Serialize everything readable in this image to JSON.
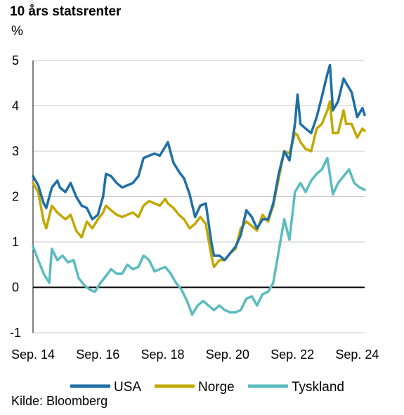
{
  "chart_data": {
    "type": "line",
    "title": "10 års statsrenter",
    "ylabel": "%",
    "ylim": [
      -1,
      5
    ],
    "yticks": [
      -1,
      0,
      1,
      2,
      3,
      4,
      5
    ],
    "xlim": [
      2014.67,
      2024.9
    ],
    "xticks": [
      {
        "label": "Sep. 14",
        "value": 2014.67
      },
      {
        "label": "Sep. 16",
        "value": 2016.67
      },
      {
        "label": "Sep. 18",
        "value": 2018.67
      },
      {
        "label": "Sep. 20",
        "value": 2020.67
      },
      {
        "label": "Sep. 22",
        "value": 2022.67
      },
      {
        "label": "Sep. 24",
        "value": 2024.67
      }
    ],
    "grid": "horizontal",
    "legend_position": "bottom",
    "source": "Kilde: Bloomberg",
    "series": [
      {
        "name": "USA",
        "color": "#1f6fa5",
        "x": [
          2014.67,
          2014.83,
          2015.0,
          2015.08,
          2015.25,
          2015.42,
          2015.5,
          2015.67,
          2015.83,
          2016.0,
          2016.17,
          2016.33,
          2016.5,
          2016.67,
          2016.83,
          2016.92,
          2017.08,
          2017.25,
          2017.42,
          2017.58,
          2017.75,
          2017.92,
          2018.08,
          2018.25,
          2018.42,
          2018.58,
          2018.75,
          2018.83,
          2019.0,
          2019.17,
          2019.33,
          2019.5,
          2019.67,
          2019.83,
          2020.0,
          2020.17,
          2020.25,
          2020.42,
          2020.58,
          2020.75,
          2020.92,
          2021.08,
          2021.25,
          2021.42,
          2021.58,
          2021.75,
          2021.92,
          2022.08,
          2022.25,
          2022.42,
          2022.58,
          2022.75,
          2022.83,
          2022.92,
          2023.08,
          2023.25,
          2023.42,
          2023.58,
          2023.75,
          2023.83,
          2023.92,
          2024.08,
          2024.25,
          2024.33,
          2024.5,
          2024.67,
          2024.83,
          2024.9
        ],
        "values": [
          2.45,
          2.25,
          1.85,
          1.75,
          2.2,
          2.35,
          2.2,
          2.1,
          2.3,
          2.0,
          1.8,
          1.75,
          1.5,
          1.6,
          2.0,
          2.5,
          2.45,
          2.3,
          2.2,
          2.25,
          2.3,
          2.45,
          2.85,
          2.9,
          2.95,
          2.9,
          3.1,
          3.2,
          2.75,
          2.55,
          2.4,
          2.05,
          1.55,
          1.8,
          1.85,
          1.0,
          0.7,
          0.7,
          0.6,
          0.75,
          0.9,
          1.15,
          1.7,
          1.55,
          1.3,
          1.5,
          1.5,
          1.85,
          2.5,
          3.0,
          2.8,
          3.6,
          4.25,
          3.6,
          3.5,
          3.4,
          3.75,
          4.2,
          4.7,
          4.9,
          3.9,
          4.1,
          4.6,
          4.5,
          4.3,
          3.75,
          3.95,
          3.8
        ]
      },
      {
        "name": "Norge",
        "color": "#c2a800",
        "x": [
          2014.67,
          2014.83,
          2015.0,
          2015.08,
          2015.25,
          2015.42,
          2015.5,
          2015.67,
          2015.83,
          2016.0,
          2016.17,
          2016.33,
          2016.5,
          2016.67,
          2016.83,
          2016.92,
          2017.08,
          2017.25,
          2017.42,
          2017.58,
          2017.75,
          2017.92,
          2018.08,
          2018.25,
          2018.42,
          2018.58,
          2018.75,
          2018.83,
          2019.0,
          2019.17,
          2019.33,
          2019.5,
          2019.67,
          2019.83,
          2020.0,
          2020.17,
          2020.25,
          2020.42,
          2020.58,
          2020.75,
          2020.92,
          2021.08,
          2021.25,
          2021.42,
          2021.58,
          2021.75,
          2021.92,
          2022.08,
          2022.25,
          2022.42,
          2022.58,
          2022.75,
          2022.83,
          2022.92,
          2023.08,
          2023.25,
          2023.42,
          2023.58,
          2023.75,
          2023.83,
          2023.92,
          2024.08,
          2024.25,
          2024.33,
          2024.5,
          2024.67,
          2024.83,
          2024.9
        ],
        "values": [
          2.3,
          2.1,
          1.45,
          1.3,
          1.8,
          1.65,
          1.6,
          1.5,
          1.6,
          1.25,
          1.1,
          1.45,
          1.3,
          1.5,
          1.65,
          1.8,
          1.7,
          1.6,
          1.55,
          1.6,
          1.65,
          1.55,
          1.8,
          1.9,
          1.85,
          1.8,
          1.95,
          1.85,
          1.75,
          1.6,
          1.5,
          1.3,
          1.4,
          1.55,
          1.4,
          0.7,
          0.45,
          0.6,
          0.6,
          0.75,
          0.85,
          1.3,
          1.45,
          1.35,
          1.25,
          1.6,
          1.45,
          1.8,
          2.4,
          3.0,
          2.95,
          3.4,
          3.35,
          3.2,
          3.05,
          3.0,
          3.5,
          3.6,
          3.9,
          4.1,
          3.4,
          3.4,
          3.9,
          3.6,
          3.6,
          3.3,
          3.5,
          3.45
        ]
      },
      {
        "name": "Tyskland",
        "color": "#5bbcbf",
        "x": [
          2014.67,
          2014.83,
          2015.0,
          2015.17,
          2015.25,
          2015.42,
          2015.58,
          2015.75,
          2015.92,
          2016.08,
          2016.25,
          2016.42,
          2016.58,
          2016.75,
          2016.92,
          2017.08,
          2017.25,
          2017.42,
          2017.58,
          2017.75,
          2017.92,
          2018.08,
          2018.25,
          2018.42,
          2018.58,
          2018.75,
          2018.92,
          2019.08,
          2019.25,
          2019.42,
          2019.58,
          2019.75,
          2019.92,
          2020.08,
          2020.25,
          2020.42,
          2020.58,
          2020.75,
          2020.92,
          2021.08,
          2021.25,
          2021.42,
          2021.58,
          2021.75,
          2021.92,
          2022.08,
          2022.25,
          2022.42,
          2022.58,
          2022.75,
          2022.92,
          2023.08,
          2023.25,
          2023.42,
          2023.58,
          2023.75,
          2023.92,
          2024.08,
          2024.25,
          2024.42,
          2024.58,
          2024.75,
          2024.9
        ],
        "values": [
          0.9,
          0.6,
          0.3,
          0.1,
          0.85,
          0.6,
          0.7,
          0.55,
          0.6,
          0.2,
          0.05,
          -0.05,
          -0.1,
          0.1,
          0.25,
          0.4,
          0.3,
          0.3,
          0.5,
          0.4,
          0.45,
          0.7,
          0.6,
          0.35,
          0.4,
          0.45,
          0.3,
          0.1,
          -0.05,
          -0.3,
          -0.6,
          -0.4,
          -0.3,
          -0.4,
          -0.5,
          -0.4,
          -0.5,
          -0.55,
          -0.55,
          -0.5,
          -0.25,
          -0.2,
          -0.4,
          -0.15,
          -0.1,
          0.1,
          0.8,
          1.5,
          1.05,
          2.1,
          2.3,
          2.1,
          2.35,
          2.5,
          2.6,
          2.85,
          2.05,
          2.3,
          2.45,
          2.6,
          2.3,
          2.2,
          2.15
        ]
      }
    ]
  }
}
